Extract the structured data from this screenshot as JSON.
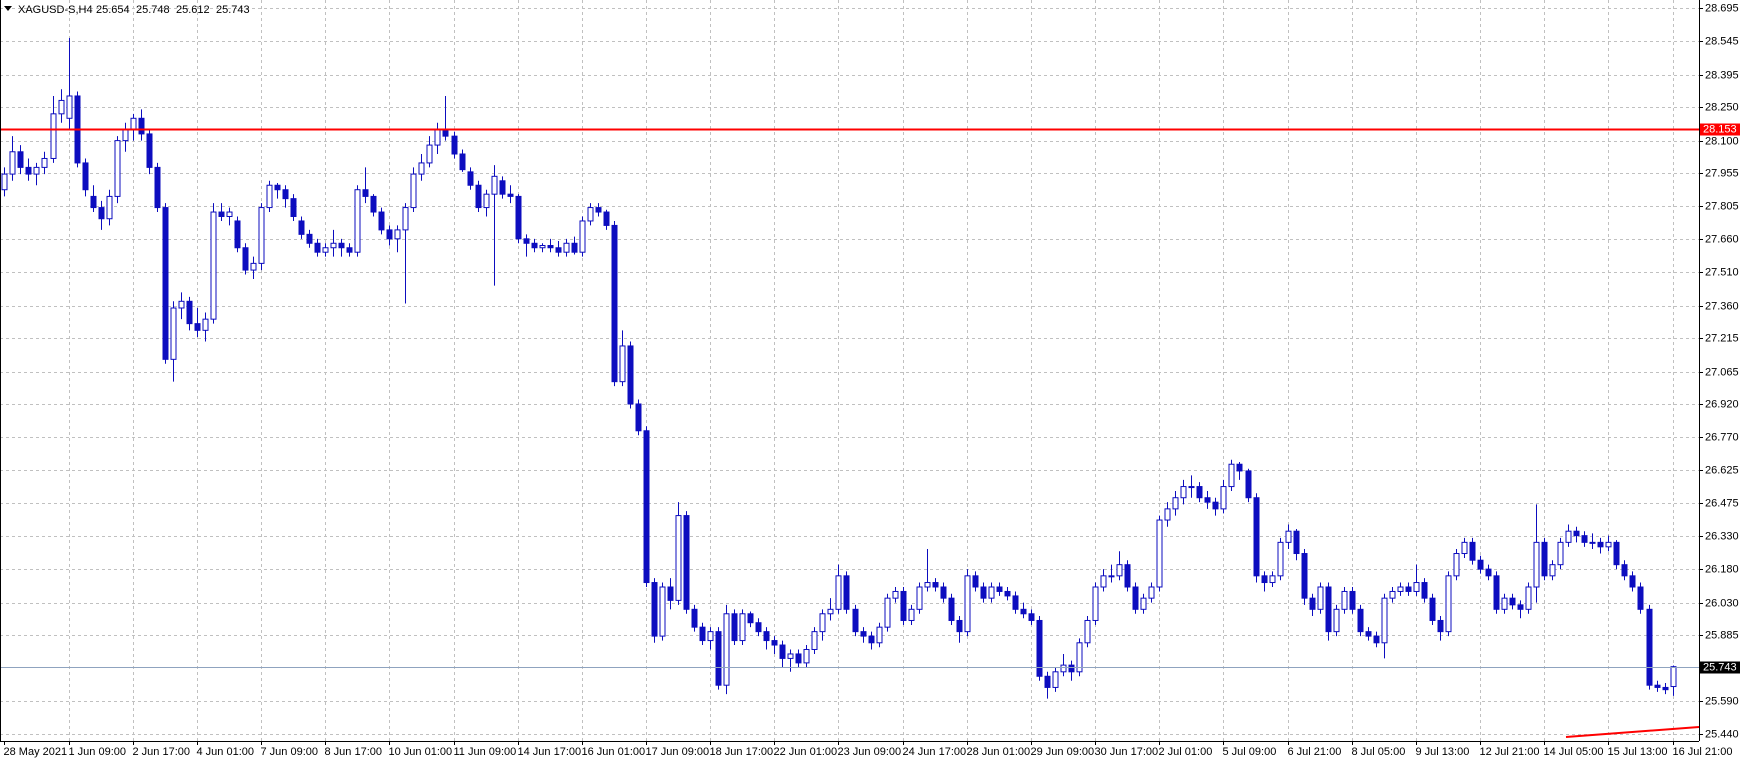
{
  "chart_data": {
    "type": "candlestick",
    "title": "XAGUSD-S,H4",
    "categories": [
      "28 May 2021",
      null,
      null,
      null,
      null,
      null,
      null,
      null,
      "1 Jun 09:00",
      null,
      null,
      null,
      null,
      null,
      null,
      null,
      "2 Jun 17:00",
      null,
      null,
      null,
      null,
      null,
      null,
      null,
      "4 Jun 01:00",
      null,
      null,
      null,
      null,
      null,
      null,
      null,
      "7 Jun 09:00",
      null,
      null,
      null,
      null,
      null,
      null,
      null,
      "8 Jun 17:00",
      null,
      null,
      null,
      null,
      null,
      null,
      null,
      "10 Jun 01:00",
      null,
      null,
      null,
      null,
      null,
      null,
      null,
      "11 Jun 09:00",
      null,
      null,
      null,
      null,
      null,
      null,
      null,
      "14 Jun 17:00",
      null,
      null,
      null,
      null,
      null,
      null,
      null,
      "16 Jun 01:00",
      null,
      null,
      null,
      null,
      null,
      null,
      null,
      "17 Jun 09:00",
      null,
      null,
      null,
      null,
      null,
      null,
      null,
      "18 Jun 17:00",
      null,
      null,
      null,
      null,
      null,
      null,
      null,
      "22 Jun 01:00",
      null,
      null,
      null,
      null,
      null,
      null,
      null,
      "23 Jun 09:00",
      null,
      null,
      null,
      null,
      null,
      null,
      null,
      "24 Jun 17:00",
      null,
      null,
      null,
      null,
      null,
      null,
      null,
      "28 Jun 01:00",
      null,
      null,
      null,
      null,
      null,
      null,
      null,
      "29 Jun 09:00",
      null,
      null,
      null,
      null,
      null,
      null,
      null,
      "30 Jun 17:00",
      null,
      null,
      null,
      null,
      null,
      null,
      null,
      "2 Jul 01:00",
      null,
      null,
      null,
      null,
      null,
      null,
      null,
      "5 Jul 09:00",
      null,
      null,
      null,
      null,
      null,
      null,
      null,
      "6 Jul 21:00",
      null,
      null,
      null,
      null,
      null,
      null,
      null,
      "8 Jul 05:00",
      null,
      null,
      null,
      null,
      null,
      null,
      null,
      "9 Jul 13:00",
      null,
      null,
      null,
      null,
      null,
      null,
      null,
      "12 Jul 21:00",
      null,
      null,
      null,
      null,
      null,
      null,
      null,
      "14 Jul 05:00",
      null,
      null,
      null,
      null,
      null,
      null,
      null,
      "15 Jul 13:00",
      null,
      null,
      null,
      null,
      null,
      null,
      null,
      "16 Jul 21:00"
    ],
    "ohlc": [
      [
        27.88,
        27.98,
        27.85,
        27.95
      ],
      [
        27.95,
        28.12,
        27.92,
        28.05
      ],
      [
        28.05,
        28.08,
        27.95,
        27.98
      ],
      [
        27.98,
        28.02,
        27.92,
        27.95
      ],
      [
        27.95,
        28.0,
        27.9,
        27.98
      ],
      [
        27.98,
        28.05,
        27.95,
        28.02
      ],
      [
        28.02,
        28.3,
        28.0,
        28.22
      ],
      [
        28.22,
        28.33,
        28.18,
        28.28
      ],
      [
        28.2,
        28.56,
        28.15,
        28.3
      ],
      [
        28.3,
        28.32,
        27.98,
        28.0
      ],
      [
        28.0,
        28.02,
        27.85,
        27.88
      ],
      [
        27.85,
        27.9,
        27.78,
        27.8
      ],
      [
        27.8,
        27.83,
        27.7,
        27.75
      ],
      [
        27.75,
        27.88,
        27.72,
        27.85
      ],
      [
        27.85,
        28.12,
        27.82,
        28.1
      ],
      [
        28.1,
        28.18,
        28.05,
        28.15
      ],
      [
        28.15,
        28.22,
        28.1,
        28.2
      ],
      [
        28.2,
        28.24,
        28.1,
        28.13
      ],
      [
        28.13,
        28.15,
        27.95,
        27.98
      ],
      [
        27.98,
        28.0,
        27.78,
        27.8
      ],
      [
        27.8,
        27.82,
        27.1,
        27.12
      ],
      [
        27.12,
        27.38,
        27.02,
        27.35
      ],
      [
        27.35,
        27.42,
        27.3,
        27.38
      ],
      [
        27.38,
        27.4,
        27.25,
        27.28
      ],
      [
        27.28,
        27.35,
        27.22,
        27.25
      ],
      [
        27.25,
        27.33,
        27.2,
        27.3
      ],
      [
        27.3,
        27.82,
        27.28,
        27.78
      ],
      [
        27.78,
        27.82,
        27.74,
        27.76
      ],
      [
        27.76,
        27.8,
        27.72,
        27.78
      ],
      [
        27.74,
        27.76,
        27.6,
        27.62
      ],
      [
        27.62,
        27.64,
        27.5,
        27.52
      ],
      [
        27.52,
        27.58,
        27.48,
        27.55
      ],
      [
        27.55,
        27.82,
        27.52,
        27.8
      ],
      [
        27.8,
        27.92,
        27.78,
        27.9
      ],
      [
        27.9,
        27.91,
        27.84,
        27.88
      ],
      [
        27.88,
        27.9,
        27.8,
        27.84
      ],
      [
        27.84,
        27.86,
        27.74,
        27.76
      ],
      [
        27.74,
        27.76,
        27.66,
        27.68
      ],
      [
        27.68,
        27.7,
        27.62,
        27.64
      ],
      [
        27.64,
        27.66,
        27.58,
        27.6
      ],
      [
        27.6,
        27.64,
        27.58,
        27.62
      ],
      [
        27.62,
        27.7,
        27.58,
        27.64
      ],
      [
        27.64,
        27.66,
        27.58,
        27.62
      ],
      [
        27.62,
        27.64,
        27.58,
        27.6
      ],
      [
        27.6,
        27.9,
        27.58,
        27.88
      ],
      [
        27.88,
        27.98,
        27.82,
        27.85
      ],
      [
        27.85,
        27.86,
        27.76,
        27.78
      ],
      [
        27.78,
        27.8,
        27.68,
        27.7
      ],
      [
        27.7,
        27.72,
        27.63,
        27.66
      ],
      [
        27.66,
        27.72,
        27.6,
        27.7
      ],
      [
        27.7,
        27.82,
        27.37,
        27.8
      ],
      [
        27.8,
        27.98,
        27.78,
        27.95
      ],
      [
        27.95,
        28.04,
        27.92,
        28.0
      ],
      [
        28.0,
        28.12,
        27.98,
        28.08
      ],
      [
        28.08,
        28.18,
        28.04,
        28.15
      ],
      [
        28.15,
        28.3,
        28.1,
        28.12
      ],
      [
        28.12,
        28.14,
        28.02,
        28.04
      ],
      [
        28.04,
        28.06,
        27.96,
        27.97
      ],
      [
        27.96,
        27.98,
        27.88,
        27.9
      ],
      [
        27.9,
        27.92,
        27.78,
        27.8
      ],
      [
        27.8,
        27.88,
        27.76,
        27.86
      ],
      [
        27.86,
        27.99,
        27.45,
        27.94
      ],
      [
        27.92,
        27.94,
        27.84,
        27.86
      ],
      [
        27.86,
        27.9,
        27.82,
        27.85
      ],
      [
        27.85,
        27.86,
        27.64,
        27.66
      ],
      [
        27.66,
        27.68,
        27.58,
        27.64
      ],
      [
        27.64,
        27.66,
        27.6,
        27.62
      ],
      [
        27.62,
        27.64,
        27.6,
        27.63
      ],
      [
        27.63,
        27.66,
        27.6,
        27.62
      ],
      [
        27.62,
        27.65,
        27.58,
        27.6
      ],
      [
        27.6,
        27.66,
        27.58,
        27.64
      ],
      [
        27.64,
        27.67,
        27.59,
        27.6
      ],
      [
        27.6,
        27.76,
        27.58,
        27.74
      ],
      [
        27.74,
        27.82,
        27.72,
        27.8
      ],
      [
        27.8,
        27.82,
        27.76,
        27.78
      ],
      [
        27.78,
        27.79,
        27.7,
        27.72
      ],
      [
        27.72,
        27.74,
        27.0,
        27.02
      ],
      [
        27.02,
        27.25,
        27.0,
        27.18
      ],
      [
        27.18,
        27.2,
        26.9,
        26.92
      ],
      [
        26.92,
        26.94,
        26.78,
        26.8
      ],
      [
        26.8,
        26.82,
        26.1,
        26.12
      ],
      [
        26.12,
        26.14,
        25.85,
        25.88
      ],
      [
        25.88,
        26.12,
        25.86,
        26.1
      ],
      [
        26.1,
        26.14,
        26.0,
        26.04
      ],
      [
        26.04,
        26.48,
        26.02,
        26.42
      ],
      [
        26.42,
        26.44,
        25.98,
        26.0
      ],
      [
        26.0,
        26.02,
        25.9,
        25.92
      ],
      [
        25.92,
        25.94,
        25.84,
        25.86
      ],
      [
        25.86,
        25.92,
        25.82,
        25.9
      ],
      [
        25.9,
        25.92,
        25.64,
        25.66
      ],
      [
        25.66,
        26.02,
        25.62,
        25.98
      ],
      [
        25.98,
        26.0,
        25.84,
        25.86
      ],
      [
        25.86,
        26.0,
        25.84,
        25.98
      ],
      [
        25.98,
        25.99,
        25.92,
        25.94
      ],
      [
        25.94,
        25.96,
        25.88,
        25.9
      ],
      [
        25.9,
        25.92,
        25.82,
        25.86
      ],
      [
        25.86,
        25.88,
        25.8,
        25.84
      ],
      [
        25.84,
        25.86,
        25.74,
        25.78
      ],
      [
        25.78,
        25.82,
        25.72,
        25.8
      ],
      [
        25.8,
        25.82,
        25.74,
        25.76
      ],
      [
        25.76,
        25.84,
        25.74,
        25.82
      ],
      [
        25.82,
        25.92,
        25.8,
        25.9
      ],
      [
        25.9,
        26.0,
        25.86,
        25.98
      ],
      [
        25.98,
        26.05,
        25.95,
        26.0
      ],
      [
        26.0,
        26.2,
        25.98,
        26.15
      ],
      [
        26.15,
        26.17,
        25.98,
        26.0
      ],
      [
        26.0,
        26.02,
        25.88,
        25.9
      ],
      [
        25.9,
        25.92,
        25.85,
        25.88
      ],
      [
        25.88,
        25.9,
        25.82,
        25.85
      ],
      [
        25.85,
        25.94,
        25.83,
        25.92
      ],
      [
        25.92,
        26.07,
        25.9,
        26.05
      ],
      [
        26.05,
        26.1,
        26.03,
        26.08
      ],
      [
        26.08,
        26.1,
        25.93,
        25.95
      ],
      [
        25.95,
        26.02,
        25.93,
        26.0
      ],
      [
        26.0,
        26.12,
        25.98,
        26.1
      ],
      [
        26.1,
        26.27,
        26.08,
        26.12
      ],
      [
        26.12,
        26.14,
        26.08,
        26.1
      ],
      [
        26.1,
        26.12,
        26.03,
        26.05
      ],
      [
        26.05,
        26.07,
        25.93,
        25.95
      ],
      [
        25.95,
        25.97,
        25.85,
        25.9
      ],
      [
        25.9,
        26.18,
        25.88,
        26.15
      ],
      [
        26.15,
        26.17,
        26.08,
        26.1
      ],
      [
        26.1,
        26.12,
        26.03,
        26.05
      ],
      [
        26.05,
        26.12,
        26.03,
        26.1
      ],
      [
        26.1,
        26.12,
        26.06,
        26.08
      ],
      [
        26.08,
        26.1,
        26.04,
        26.06
      ],
      [
        26.06,
        26.08,
        25.98,
        26.0
      ],
      [
        26.0,
        26.03,
        25.96,
        25.98
      ],
      [
        25.98,
        26.0,
        25.93,
        25.95
      ],
      [
        25.95,
        25.97,
        25.68,
        25.7
      ],
      [
        25.7,
        25.72,
        25.6,
        25.65
      ],
      [
        25.65,
        25.74,
        25.63,
        25.72
      ],
      [
        25.72,
        25.8,
        25.7,
        25.75
      ],
      [
        25.75,
        25.77,
        25.68,
        25.72
      ],
      [
        25.72,
        25.87,
        25.7,
        25.85
      ],
      [
        25.85,
        25.97,
        25.83,
        25.95
      ],
      [
        25.95,
        26.12,
        25.93,
        26.1
      ],
      [
        26.1,
        26.18,
        26.08,
        26.15
      ],
      [
        26.15,
        26.2,
        26.12,
        26.15
      ],
      [
        26.15,
        26.26,
        26.13,
        26.2
      ],
      [
        26.2,
        26.22,
        26.08,
        26.1
      ],
      [
        26.1,
        26.12,
        25.98,
        26.0
      ],
      [
        26.0,
        26.07,
        25.98,
        26.05
      ],
      [
        26.05,
        26.12,
        26.03,
        26.1
      ],
      [
        26.1,
        26.42,
        26.08,
        26.4
      ],
      [
        26.4,
        26.48,
        26.37,
        26.45
      ],
      [
        26.45,
        26.53,
        26.42,
        26.5
      ],
      [
        26.5,
        26.58,
        26.47,
        26.55
      ],
      [
        26.55,
        26.6,
        26.5,
        26.55
      ],
      [
        26.55,
        26.57,
        26.48,
        26.5
      ],
      [
        26.5,
        26.53,
        26.45,
        26.48
      ],
      [
        26.48,
        26.5,
        26.42,
        26.45
      ],
      [
        26.45,
        26.58,
        26.43,
        26.55
      ],
      [
        26.55,
        26.67,
        26.53,
        26.65
      ],
      [
        26.65,
        26.66,
        26.58,
        26.62
      ],
      [
        26.62,
        26.63,
        26.48,
        26.5
      ],
      [
        26.5,
        26.52,
        26.12,
        26.15
      ],
      [
        26.15,
        26.17,
        26.08,
        26.12
      ],
      [
        26.12,
        26.17,
        26.1,
        26.15
      ],
      [
        26.15,
        26.32,
        26.13,
        26.3
      ],
      [
        26.3,
        26.38,
        26.27,
        26.35
      ],
      [
        26.35,
        26.36,
        26.22,
        26.25
      ],
      [
        26.25,
        26.27,
        26.02,
        26.05
      ],
      [
        26.05,
        26.07,
        25.97,
        26.0
      ],
      [
        26.0,
        26.12,
        25.98,
        26.1
      ],
      [
        26.1,
        26.12,
        25.86,
        25.9
      ],
      [
        25.9,
        26.02,
        25.88,
        26.0
      ],
      [
        26.0,
        26.1,
        25.98,
        26.08
      ],
      [
        26.08,
        26.1,
        25.98,
        26.0
      ],
      [
        26.0,
        26.02,
        25.88,
        25.9
      ],
      [
        25.9,
        25.92,
        25.86,
        25.88
      ],
      [
        25.88,
        25.9,
        25.83,
        25.85
      ],
      [
        25.85,
        26.07,
        25.78,
        26.05
      ],
      [
        26.05,
        26.1,
        26.03,
        26.08
      ],
      [
        26.08,
        26.12,
        26.06,
        26.1
      ],
      [
        26.1,
        26.12,
        26.06,
        26.08
      ],
      [
        26.08,
        26.2,
        26.06,
        26.12
      ],
      [
        26.12,
        26.14,
        26.03,
        26.05
      ],
      [
        26.05,
        26.07,
        25.93,
        25.95
      ],
      [
        25.95,
        25.97,
        25.86,
        25.9
      ],
      [
        25.9,
        26.17,
        25.88,
        26.15
      ],
      [
        26.15,
        26.27,
        26.13,
        26.25
      ],
      [
        26.25,
        26.32,
        26.23,
        26.3
      ],
      [
        26.3,
        26.32,
        26.2,
        26.22
      ],
      [
        26.22,
        26.24,
        26.16,
        26.18
      ],
      [
        26.18,
        26.2,
        26.13,
        26.15
      ],
      [
        26.15,
        26.17,
        25.98,
        26.0
      ],
      [
        26.0,
        26.07,
        25.98,
        26.05
      ],
      [
        26.05,
        26.07,
        26.0,
        26.02
      ],
      [
        26.02,
        26.04,
        25.96,
        26.0
      ],
      [
        26.0,
        26.12,
        25.98,
        26.1
      ],
      [
        26.1,
        26.47,
        26.03,
        26.3
      ],
      [
        26.3,
        26.32,
        26.13,
        26.15
      ],
      [
        26.15,
        26.22,
        26.13,
        26.2
      ],
      [
        26.2,
        26.32,
        26.18,
        26.3
      ],
      [
        26.3,
        26.38,
        26.28,
        26.35
      ],
      [
        26.35,
        26.37,
        26.3,
        26.33
      ],
      [
        26.33,
        26.35,
        26.28,
        26.3
      ],
      [
        26.3,
        26.34,
        26.27,
        26.3
      ],
      [
        26.3,
        26.32,
        26.25,
        26.28
      ],
      [
        26.28,
        26.33,
        26.26,
        26.3
      ],
      [
        26.3,
        26.31,
        26.18,
        26.2
      ],
      [
        26.2,
        26.22,
        26.13,
        26.15
      ],
      [
        26.15,
        26.17,
        26.08,
        26.1
      ],
      [
        26.1,
        26.12,
        25.98,
        26.0
      ],
      [
        26.0,
        26.02,
        25.64,
        25.66
      ],
      [
        25.66,
        25.68,
        25.63,
        25.65
      ],
      [
        25.65,
        25.67,
        25.62,
        25.64
      ],
      [
        25.654,
        25.748,
        25.612,
        25.743
      ]
    ],
    "color": "#0d0dbf",
    "bull_fill": "#ffffff",
    "ylim": [
      25.41,
      28.73
    ],
    "yticks": [
      28.695,
      28.545,
      28.395,
      {
        "value": 28.25,
        "label": "28.250"
      },
      {
        "value": 28.1,
        "label": "28.100"
      },
      27.955,
      27.805,
      {
        "value": 27.66,
        "label": "27.660"
      },
      {
        "value": 27.51,
        "label": "27.510"
      },
      {
        "value": 27.36,
        "label": "27.360"
      },
      27.215,
      27.065,
      {
        "value": 26.92,
        "label": "26.920"
      },
      {
        "value": 26.77,
        "label": "26.770"
      },
      26.625,
      26.475,
      {
        "value": 26.33,
        "label": "26.330"
      },
      {
        "value": 26.18,
        "label": "26.180"
      },
      {
        "value": 26.03,
        "label": "26.030"
      },
      25.885,
      {
        "value": 25.59,
        "label": "25.590"
      },
      {
        "value": 25.44,
        "label": "25.440"
      }
    ],
    "grid": true,
    "level": {
      "value": 28.153,
      "color": "#ff0000"
    },
    "bid_line_color": "#8fa3bf"
  }
}
